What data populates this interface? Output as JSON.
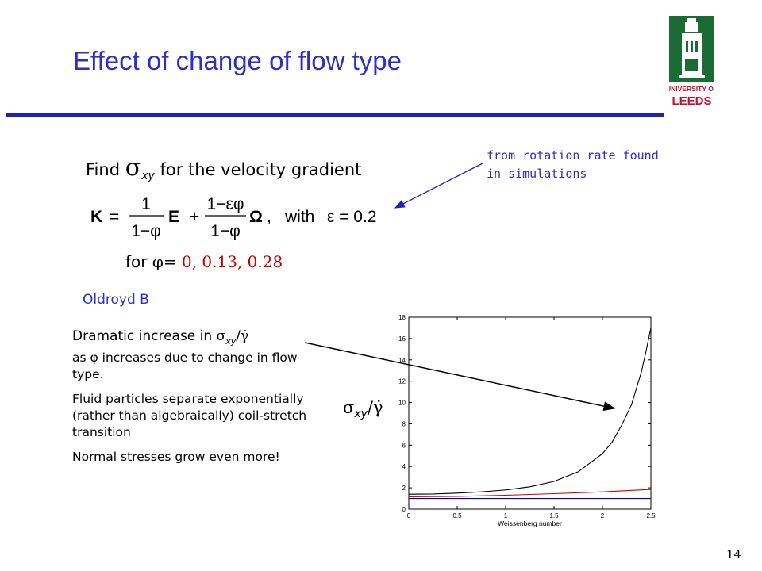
{
  "slide": {
    "title": "Effect of change of flow type",
    "page_number": "14"
  },
  "logo": {
    "line1": "UNIVERSITY OF",
    "line2": "LEEDS",
    "color": "#1a6b34",
    "accent": "#c8102e"
  },
  "find": {
    "prefix": "Find",
    "symbol": "σ",
    "subscript": "xy",
    "suffix": "for the velocity gradient"
  },
  "formula": {
    "K": "K",
    "eq": "=",
    "one": "1",
    "den": "1−φ",
    "E": "E",
    "plus": "+",
    "num2": "1−εφ",
    "Omega": "Ω",
    "comma": ",",
    "with": "with",
    "eps": "ε = 0.2"
  },
  "annotation": {
    "line1": "from rotation rate found",
    "line2": "in simulations"
  },
  "for_values": {
    "prefix": "for",
    "phi": "φ=",
    "values": "0, 0.13, 0.28"
  },
  "model": "Oldroyd B",
  "description": {
    "p1_prefix": "Dramatic increase in",
    "p1_rest": "as φ increases due to change in flow type.",
    "p2": "Fluid particles separate exponentially (rather than algebraically) coil-stretch transition",
    "p3": "Normal stresses grow even more!"
  },
  "symbol_label": {
    "sigma": "σ",
    "sub": "xy",
    "slash": "/",
    "gamma": "γ̇"
  },
  "chart_data": {
    "type": "line",
    "xlabel": "Weissenberg number",
    "ylabel": "",
    "xlim": [
      0,
      2.5
    ],
    "ylim": [
      0,
      18
    ],
    "x_ticks": [
      "0",
      "0.5",
      "1",
      "1.5",
      "2",
      "2.5"
    ],
    "y_ticks": [
      "0",
      "2",
      "4",
      "6",
      "8",
      "10",
      "12",
      "14",
      "16",
      "18"
    ],
    "grid": false,
    "series": [
      {
        "color": "#000000",
        "x": [
          0,
          0.25,
          0.5,
          0.75,
          1.0,
          1.25,
          1.5,
          1.75,
          2.0,
          2.1,
          2.2,
          2.3,
          2.4,
          2.45,
          2.5
        ],
        "y": [
          1.4,
          1.42,
          1.5,
          1.62,
          1.8,
          2.1,
          2.6,
          3.5,
          5.2,
          6.3,
          7.9,
          9.8,
          12.8,
          14.8,
          17.0
        ]
      },
      {
        "color": "#cc0000",
        "x": [
          0,
          0.5,
          1.0,
          1.5,
          2.0,
          2.5
        ],
        "y": [
          1.15,
          1.2,
          1.3,
          1.45,
          1.62,
          1.85
        ]
      },
      {
        "color": "#0000cc",
        "x": [
          0,
          0.5,
          1.0,
          1.5,
          2.0,
          2.5
        ],
        "y": [
          1.0,
          1.0,
          1.0,
          1.0,
          1.0,
          1.0
        ]
      }
    ]
  },
  "colors": {
    "title": "#2e2ec8",
    "rule": "#2020c0",
    "highlight": "#c00000"
  }
}
